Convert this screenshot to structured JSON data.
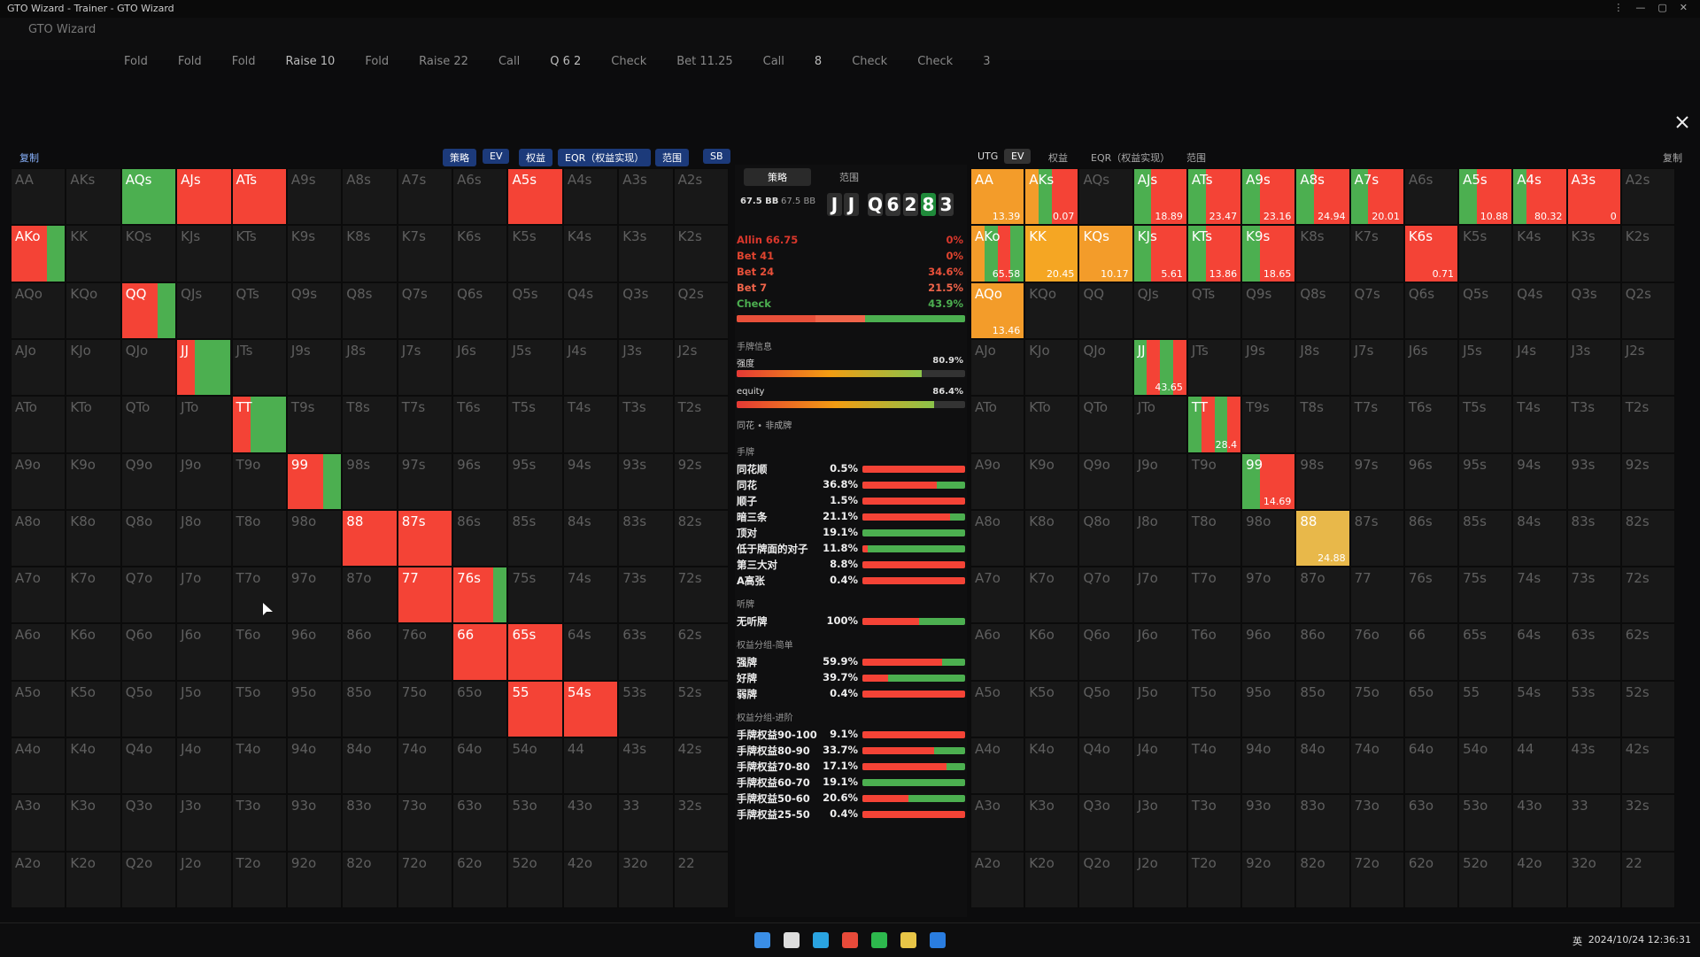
{
  "window_title": "GTO Wizard - Trainer - GTO Wizard",
  "app_name": "GTO Wizard",
  "history": [
    "Fold",
    "Fold",
    "Fold",
    "Raise 10",
    "Fold",
    "Raise 22",
    "Call",
    "Q 6 2",
    "Check",
    "Bet 11.25",
    "Call",
    "8",
    "Check",
    "Check",
    "3"
  ],
  "left_toolbar": {
    "copy": "复制",
    "tabs": [
      "策略",
      "EV",
      "权益",
      "EQR（权益实现）",
      "范围"
    ],
    "position": "SB"
  },
  "right_toolbar": {
    "position": "UTG",
    "tabs": [
      "EV",
      "权益",
      "EQR（权益实现）",
      "范围"
    ],
    "copy": "复制"
  },
  "hands": [
    [
      "AA",
      "AKs",
      "AQs",
      "AJs",
      "ATs",
      "A9s",
      "A8s",
      "A7s",
      "A6s",
      "A5s",
      "A4s",
      "A3s",
      "A2s"
    ],
    [
      "AKo",
      "KK",
      "KQs",
      "KJs",
      "KTs",
      "K9s",
      "K8s",
      "K7s",
      "K6s",
      "K5s",
      "K4s",
      "K3s",
      "K2s"
    ],
    [
      "AQo",
      "KQo",
      "QQ",
      "QJs",
      "QTs",
      "Q9s",
      "Q8s",
      "Q7s",
      "Q6s",
      "Q5s",
      "Q4s",
      "Q3s",
      "Q2s"
    ],
    [
      "AJo",
      "KJo",
      "QJo",
      "JJ",
      "JTs",
      "J9s",
      "J8s",
      "J7s",
      "J6s",
      "J5s",
      "J4s",
      "J3s",
      "J2s"
    ],
    [
      "ATo",
      "KTo",
      "QTo",
      "JTo",
      "TT",
      "T9s",
      "T8s",
      "T7s",
      "T6s",
      "T5s",
      "T4s",
      "T3s",
      "T2s"
    ],
    [
      "A9o",
      "K9o",
      "Q9o",
      "J9o",
      "T9o",
      "99",
      "98s",
      "97s",
      "96s",
      "95s",
      "94s",
      "93s",
      "92s"
    ],
    [
      "A8o",
      "K8o",
      "Q8o",
      "J8o",
      "T8o",
      "98o",
      "88",
      "87s",
      "86s",
      "85s",
      "84s",
      "83s",
      "82s"
    ],
    [
      "A7o",
      "K7o",
      "Q7o",
      "J7o",
      "T7o",
      "97o",
      "87o",
      "77",
      "76s",
      "75s",
      "74s",
      "73s",
      "72s"
    ],
    [
      "A6o",
      "K6o",
      "Q6o",
      "J6o",
      "T6o",
      "96o",
      "86o",
      "76o",
      "66",
      "65s",
      "64s",
      "63s",
      "62s"
    ],
    [
      "A5o",
      "K5o",
      "Q5o",
      "J5o",
      "T5o",
      "95o",
      "85o",
      "75o",
      "65o",
      "55",
      "54s",
      "53s",
      "52s"
    ],
    [
      "A4o",
      "K4o",
      "Q4o",
      "J4o",
      "T4o",
      "94o",
      "84o",
      "74o",
      "64o",
      "54o",
      "44",
      "43s",
      "42s"
    ],
    [
      "A3o",
      "K3o",
      "Q3o",
      "J3o",
      "T3o",
      "93o",
      "83o",
      "73o",
      "63o",
      "53o",
      "43o",
      "33",
      "32s"
    ],
    [
      "A2o",
      "K2o",
      "Q2o",
      "J2o",
      "T2o",
      "92o",
      "82o",
      "72o",
      "62o",
      "52o",
      "42o",
      "32o",
      "22"
    ]
  ],
  "left_grid": {
    "colors": {
      "AQs": [
        "#4caf50"
      ],
      "AJs": [
        "#f44336"
      ],
      "ATs": [
        "#f44336"
      ],
      "A5s": [
        "#f44336"
      ],
      "AKo": [
        "#f44336",
        "#f44336",
        "#4caf50"
      ],
      "QQ": [
        "#f44336",
        "#f44336",
        "#4caf50"
      ],
      "JJ": [
        "#f44336",
        "#4caf50",
        "#4caf50"
      ],
      "TT": [
        "#f44336",
        "#4caf50",
        "#4caf50"
      ],
      "99": [
        "#f44336",
        "#f44336",
        "#4caf50"
      ],
      "88": [
        "#f44336"
      ],
      "87s": [
        "#f44336"
      ],
      "77": [
        "#f44336"
      ],
      "76s": [
        "#f44336",
        "#f44336",
        "#f44336",
        "#4caf50"
      ],
      "66": [
        "#f44336"
      ],
      "65s": [
        "#f44336"
      ],
      "55": [
        "#f44336"
      ],
      "54s": [
        "#f44336"
      ]
    }
  },
  "right_grid": {
    "cells": {
      "AA": {
        "value": "13.39",
        "colors": [
          "#f39c2a"
        ]
      },
      "AKs": {
        "value": "0.07",
        "colors": [
          "#f39c2a",
          "#4caf50",
          "#f44336",
          "#f44336"
        ]
      },
      "AJs": {
        "value": "18.89",
        "colors": [
          "#4caf50",
          "#f44336",
          "#f44336"
        ]
      },
      "ATs": {
        "value": "23.47",
        "colors": [
          "#4caf50",
          "#f44336",
          "#f44336"
        ]
      },
      "A9s": {
        "value": "23.16",
        "colors": [
          "#4caf50",
          "#f44336",
          "#f44336"
        ]
      },
      "A8s": {
        "value": "24.94",
        "colors": [
          "#4caf50",
          "#f44336",
          "#f44336"
        ]
      },
      "A7s": {
        "value": "20.01",
        "colors": [
          "#4caf50",
          "#f44336",
          "#f44336"
        ]
      },
      "A5s": {
        "value": "10.88",
        "colors": [
          "#4caf50",
          "#f44336",
          "#f44336"
        ]
      },
      "A4s": {
        "value": "80.32",
        "colors": [
          "#4caf50",
          "#f44336",
          "#f44336",
          "#f44336"
        ]
      },
      "A3s": {
        "value": "0",
        "colors": [
          "#f44336"
        ]
      },
      "AKo": {
        "value": "65.58",
        "colors": [
          "#f39c2a",
          "#4caf50",
          "#f44336",
          "#4caf50"
        ]
      },
      "KK": {
        "value": "20.45",
        "colors": [
          "#f5a623"
        ]
      },
      "KQs": {
        "value": "10.17",
        "colors": [
          "#f39c2a"
        ]
      },
      "KJs": {
        "value": "5.61",
        "colors": [
          "#4caf50",
          "#f44336",
          "#f44336"
        ]
      },
      "KTs": {
        "value": "13.86",
        "colors": [
          "#4caf50",
          "#f44336",
          "#f44336"
        ]
      },
      "K9s": {
        "value": "18.65",
        "colors": [
          "#4caf50",
          "#f44336",
          "#f44336"
        ]
      },
      "K6s": {
        "value": "0.71",
        "colors": [
          "#f44336"
        ]
      },
      "AQo": {
        "value": "13.46",
        "colors": [
          "#f39c2a"
        ]
      },
      "JJ": {
        "value": "43.65",
        "colors": [
          "#4caf50",
          "#f44336",
          "#4caf50",
          "#f44336"
        ]
      },
      "TT": {
        "value": "28.4",
        "colors": [
          "#4caf50",
          "#f44336",
          "#4caf50",
          "#f44336"
        ]
      },
      "99": {
        "value": "14.69",
        "colors": [
          "#4caf50",
          "#f44336",
          "#f44336"
        ]
      },
      "88": {
        "value": "24.88",
        "colors": [
          "#e8b84a"
        ]
      }
    }
  },
  "panel": {
    "tabs": [
      "策略",
      "范围"
    ],
    "stack": "67.5 BB",
    "stack2": "67.5 BB",
    "hero": [
      "J",
      "J"
    ],
    "board": [
      {
        "rank": "Q",
        "color": "#333"
      },
      {
        "rank": "6",
        "color": "#333"
      },
      {
        "rank": "2",
        "color": "#333"
      },
      {
        "rank": "8",
        "color": "#1f8a3a"
      },
      {
        "rank": "3",
        "color": "#333"
      }
    ],
    "actions": [
      {
        "label": "Allin 66.75",
        "pct": "0%",
        "color": "#d9372c",
        "share": 0
      },
      {
        "label": "Bet 41",
        "pct": "0%",
        "color": "#e0442f",
        "share": 0
      },
      {
        "label": "Bet 24",
        "pct": "34.6%",
        "color": "#e8503a",
        "share": 34.6
      },
      {
        "label": "Bet 7",
        "pct": "21.5%",
        "color": "#f0644a",
        "share": 21.5
      },
      {
        "label": "Check",
        "pct": "43.9%",
        "color": "#4caf50",
        "share": 43.9
      }
    ],
    "info_title": "手牌信息",
    "strength": {
      "label": "强度",
      "pct": "80.9%",
      "share": 80.9
    },
    "equity": {
      "label": "equity",
      "pct": "86.4%",
      "share": 86.4
    },
    "category": "同花 • 非成牌",
    "sections": [
      {
        "title": "手牌",
        "items": [
          {
            "label": "同花顺",
            "pct": "0.5%",
            "red": 100
          },
          {
            "label": "同花",
            "pct": "36.8%",
            "red": 72
          },
          {
            "label": "顺子",
            "pct": "1.5%",
            "red": 100
          },
          {
            "label": "暗三条",
            "pct": "21.1%",
            "red": 85
          },
          {
            "label": "顶对",
            "pct": "19.1%",
            "red": 0
          },
          {
            "label": "低于牌面的对子",
            "pct": "11.8%",
            "red": 5
          },
          {
            "label": "第三大对",
            "pct": "8.8%",
            "red": 100
          },
          {
            "label": "A高张",
            "pct": "0.4%",
            "red": 100
          }
        ]
      },
      {
        "title": "听牌",
        "items": [
          {
            "label": "无听牌",
            "pct": "100%",
            "red": 55
          }
        ]
      },
      {
        "title": "权益分组-简单",
        "items": [
          {
            "label": "强牌",
            "pct": "59.9%",
            "red": 78
          },
          {
            "label": "好牌",
            "pct": "39.7%",
            "red": 25
          },
          {
            "label": "弱牌",
            "pct": "0.4%",
            "red": 100
          }
        ]
      },
      {
        "title": "权益分组-进阶",
        "items": [
          {
            "label": "手牌权益90-100",
            "pct": "9.1%",
            "red": 100
          },
          {
            "label": "手牌权益80-90",
            "pct": "33.7%",
            "red": 70
          },
          {
            "label": "手牌权益70-80",
            "pct": "17.1%",
            "red": 82
          },
          {
            "label": "手牌权益60-70",
            "pct": "19.1%",
            "red": 0
          },
          {
            "label": "手牌权益50-60",
            "pct": "20.6%",
            "red": 45
          },
          {
            "label": "手牌权益25-50",
            "pct": "0.4%",
            "red": 100
          }
        ]
      }
    ]
  },
  "taskbar": {
    "ime": "英",
    "clock": "2024/10/24 12:36:31"
  }
}
